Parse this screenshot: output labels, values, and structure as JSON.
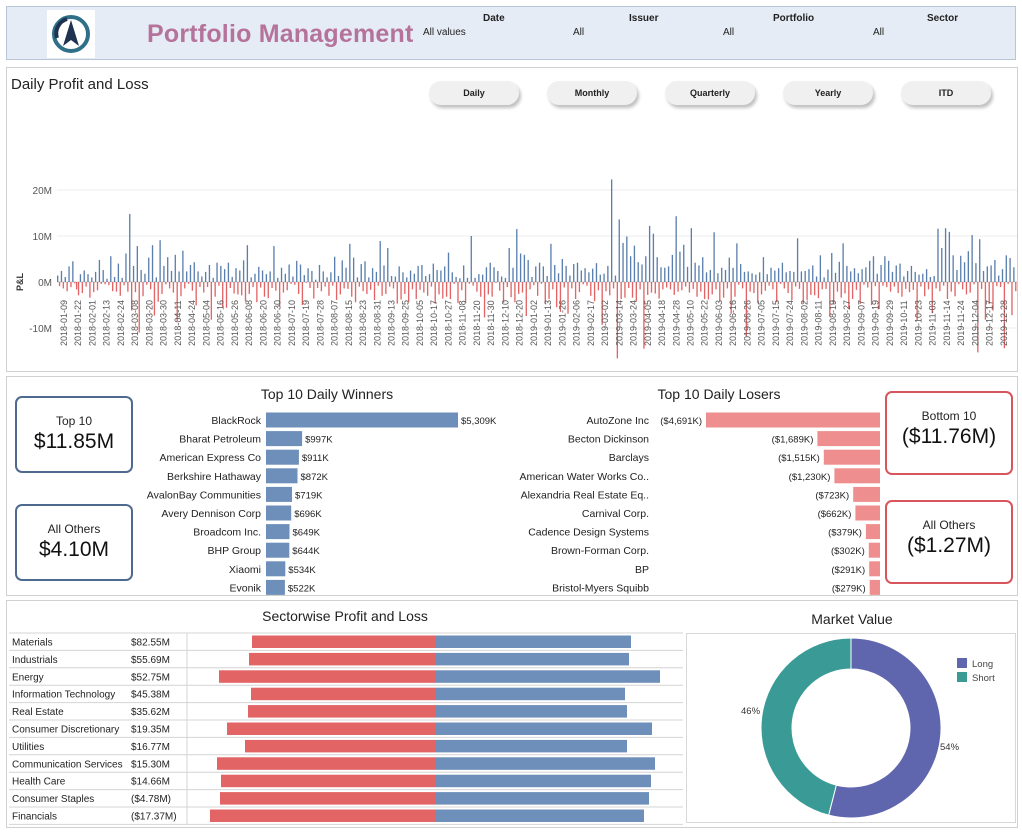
{
  "header": {
    "title": "Portfolio Management",
    "filters": [
      {
        "label": "Date",
        "value": "All values"
      },
      {
        "label": "Issuer",
        "value": "All"
      },
      {
        "label": "Portfolio",
        "value": "All"
      },
      {
        "label": "Sector",
        "value": "All"
      }
    ]
  },
  "daily": {
    "title": "Daily Profit and Loss",
    "buttons": [
      "Daily",
      "Monthly",
      "Quarterly",
      "Yearly",
      "ITD"
    ]
  },
  "winners_panel": {
    "title": "Top 10 Daily Winners",
    "kpi_top_label": "Top 10",
    "kpi_top_value": "$11.85M",
    "kpi_others_label": "All Others",
    "kpi_others_value": "$4.10M"
  },
  "losers_panel": {
    "title": "Top 10 Daily Losers",
    "kpi_bottom_label": "Bottom 10",
    "kpi_bottom_value": "($11.76M)",
    "kpi_others_label": "All Others",
    "kpi_others_value": "($1.27M)"
  },
  "sector_panel": {
    "title": "Sectorwise Profit and Loss"
  },
  "market_value": {
    "title": "Market Value"
  },
  "colors": {
    "positive": "#5b7fad",
    "negative": "#e26464",
    "winner_bar": "#6d8fba",
    "loser_bar": "#ef8e8e",
    "long": "#5f66ad",
    "short": "#3a9a96",
    "title_pink": "#b5739c"
  },
  "chart_data": [
    {
      "id": "daily_pnl",
      "type": "bar",
      "ylabel": "P&L",
      "yticks": [
        "20M",
        "10M",
        "0M",
        "-10M"
      ],
      "ylim": [
        -18,
        24
      ],
      "x_tick_labels": [
        "2018-01-09",
        "2018-01-22",
        "2018-02-01",
        "2018-02-13",
        "2018-02-24",
        "2018-03-08",
        "2018-03-20",
        "2018-03-30",
        "2018-04-11",
        "2018-04-24",
        "2018-05-04",
        "2018-05-16",
        "2018-05-26",
        "2018-06-08",
        "2018-06-20",
        "2018-06-30",
        "2018-07-10",
        "2018-07-19",
        "2018-07-28",
        "2018-08-07",
        "2018-08-15",
        "2018-08-23",
        "2018-08-31",
        "2018-09-13",
        "2018-09-25",
        "2018-10-05",
        "2018-10-17",
        "2018-10-27",
        "2018-11-08",
        "2018-11-20",
        "2018-11-30",
        "2018-12-10",
        "2018-12-20",
        "2019-01-02",
        "2019-01-13",
        "2019-01-26",
        "2019-02-06",
        "2019-02-17",
        "2019-03-02",
        "2019-03-14",
        "2019-03-24",
        "2019-04-05",
        "2019-04-18",
        "2019-04-28",
        "2019-05-10",
        "2019-05-22",
        "2019-06-03",
        "2019-06-16",
        "2019-06-26",
        "2019-07-05",
        "2019-07-15",
        "2019-07-24",
        "2019-08-02",
        "2019-08-11",
        "2019-08-19",
        "2019-08-27",
        "2019-09-07",
        "2019-09-19",
        "2019-09-29",
        "2019-10-11",
        "2019-10-23",
        "2019-11-03",
        "2019-11-14",
        "2019-11-24",
        "2019-12-04",
        "2019-12-17",
        "2019-12-28"
      ],
      "values": [
        1.4,
        -0.9,
        2.4,
        -1.4,
        1.1,
        -2.0,
        3.4,
        -1.1,
        4.5,
        -0.3,
        -1.6,
        -2.9,
        1.7,
        -2.4,
        2.5,
        -1.0,
        1.7,
        -3.4,
        1.0,
        -2.2,
        2.2,
        -1.8,
        4.8,
        -0.4,
        2.6,
        -0.5,
        0.7,
        -0.7,
        5.6,
        -2.0,
        1.1,
        -2.1,
        4.0,
        -3.0,
        0.9,
        -0.7,
        6.2,
        -2.1,
        14.8,
        -6.2,
        3.5,
        -2.2,
        7.8,
        -11.0,
        2.6,
        -3.1,
        1.8,
        -0.6,
        5.3,
        -1.6,
        8.0,
        -7.3,
        1.0,
        -4.3,
        9.1,
        -2.6,
        3.5,
        -0.5,
        5.4,
        -1.4,
        2.4,
        -2.3,
        5.9,
        -8.5,
        2.3,
        -3.1,
        6.8,
        -1.4,
        2.3,
        -0.4,
        3.7,
        -1.9,
        4.3,
        -5.1,
        2.3,
        -1.1,
        1.2,
        -2.3,
        2.2,
        -1.1,
        3.7,
        -8.2,
        0.9,
        -3.2,
        4.2,
        -0.8,
        3.5,
        -5.5,
        2.8,
        -5.6,
        4.2,
        -1.3,
        1.1,
        -2.5,
        3.0,
        -2.7,
        2.5,
        -2.9,
        4.7,
        -4.2,
        8.0,
        -2.6,
        1.0,
        -1.1,
        1.8,
        -4.4,
        3.3,
        -1.2,
        2.5,
        -3.2,
        1.7,
        -3.5,
        2.3,
        -1.3,
        7.8,
        -1.9,
        0.9,
        -5.3,
        3.1,
        -2.3,
        1.8,
        -1.8,
        3.8,
        -0.4,
        1.2,
        -0.6,
        4.6,
        -2.6,
        3.8,
        -5.0,
        1.5,
        -0.2,
        3.0,
        -1.3,
        2.4,
        -3.6,
        0.5,
        -1.3,
        3.7,
        -2.0,
        2.3,
        -1.0,
        1.0,
        -3.0,
        2.1,
        -0.8,
        5.5,
        -3.9,
        1.3,
        -2.7,
        4.7,
        -1.4,
        3.1,
        -1.5,
        8.3,
        -3.2,
        5.3,
        -4.4,
        1.0,
        -1.0,
        3.9,
        -2.0,
        4.5,
        -2.6,
        1.0,
        -1.7,
        3.0,
        -3.9,
        2.2,
        -0.8,
        8.9,
        -3.0,
        3.6,
        -2.6,
        7.4,
        -1.0,
        1.3,
        -1.4,
        1.2,
        -4.7,
        3.4,
        -3.8,
        2.1,
        -2.6,
        1.0,
        -4.4,
        2.5,
        -1.6,
        1.8,
        -3.7,
        3.5,
        -1.7,
        3.7,
        -2.3,
        1.3,
        -3.0,
        1.7,
        -1.0,
        4.0,
        -4.7,
        2.6,
        -2.7,
        2.5,
        -3.6,
        3.4,
        -3.2,
        6.4,
        -3.7,
        2.1,
        -0.4,
        1.1,
        -4.6,
        0.8,
        -1.8,
        3.6,
        -4.6,
        0.9,
        -0.4,
        10.0,
        -0.8,
        0.9,
        -2.1,
        1.7,
        -3.2,
        1.6,
        -7.7,
        3.2,
        -2.7,
        4.2,
        -3.2,
        3.2,
        -0.2,
        2.4,
        -1.9,
        1.2,
        -4.5,
        0.9,
        -1.1,
        7.4,
        -3.3,
        3.1,
        -4.4,
        11.5,
        -2.6,
        6.2,
        -2.3,
        5.9,
        -7.4,
        4.8,
        -1.6,
        1.1,
        -0.7,
        3.4,
        -3.0,
        4.2,
        -0.4,
        3.4,
        -4.7,
        1.3,
        -3.7,
        8.3,
        -1.6,
        3.7,
        -5.5,
        1.9,
        -6.5,
        5.0,
        -1.2,
        3.5,
        -6.9,
        1.4,
        -1.4,
        3.9,
        -3.7,
        4.2,
        -2.2,
        2.5,
        -0.5,
        3.0,
        -0.8,
        2.1,
        -3.0,
        2.9,
        -4.2,
        4.1,
        -1.8,
        1.6,
        -9.3,
        1.8,
        -2.0,
        3.5,
        -2.9,
        22.3,
        -1.4,
        1.4,
        -16.6,
        13.6,
        -3.7,
        8.5,
        -3.4,
        9.9,
        -1.3,
        5.6,
        -3.4,
        7.9,
        -4.2,
        4.3,
        -1.6,
        3.8,
        -14.5,
        5.6,
        -2.8,
        12.2,
        -2.3,
        10.5,
        -2.5,
        5.4,
        -3.6,
        3.2,
        -1.6,
        3.1,
        -1.2,
        3.4,
        -1.6,
        5.9,
        -2.8,
        14.3,
        -2.1,
        6.6,
        -1.8,
        8.1,
        -1.0,
        3.3,
        -2.3,
        11.7,
        -1.5,
        4.2,
        -3.2,
        3.6,
        -2.1,
        5.4,
        -3.7,
        2.1,
        -3.8,
        2.6,
        -2.7,
        10.8,
        -1.6,
        1.9,
        -4.2,
        3.1,
        -3.4,
        2.6,
        -1.4,
        5.3,
        -6.9,
        3.1,
        -3.2,
        8.4,
        -0.6,
        3.9,
        -1.4,
        2.2,
        -11.8,
        2.3,
        -2.1,
        1.9,
        -2.4,
        1.6,
        -4.6,
        2.1,
        -2.7,
        5.4,
        -1.9,
        1.7,
        -0.8,
        3.1,
        -1.6,
        2.5,
        -4.4,
        3.0,
        -0.4,
        4.2,
        -1.4,
        2.1,
        -2.4,
        2.4,
        -3.9,
        2.2,
        -1.0,
        9.5,
        -1.5,
        2.3,
        -4.8,
        2.4,
        -3.9,
        2.8,
        -2.8,
        3.6,
        -2.9,
        1.2,
        -3.5,
        5.8,
        -1.6,
        1.0,
        -1.5,
        2.7,
        -7.5,
        6.3,
        -4.9,
        2.0,
        -2.1,
        4.4,
        -3.4,
        8.4,
        -2.5,
        3.5,
        -5.7,
        2.3,
        -3.7,
        3.0,
        -1.7,
        1.9,
        -4.8,
        2.8,
        -0.6,
        3.2,
        -1.2,
        4.6,
        -5.0,
        5.6,
        -0.9,
        1.8,
        -5.9,
        3.7,
        -0.8,
        5.6,
        -1.1,
        4.6,
        -2.1,
        2.2,
        -1.0,
        3.6,
        -2.4,
        4.0,
        -3.2,
        1.2,
        -1.5,
        2.4,
        -2.2,
        3.5,
        -1.7,
        2.2,
        -8.3,
        1.6,
        -1.0,
        1.8,
        -3.1,
        2.8,
        -1.6,
        1.1,
        -6.8,
        1.3,
        -1.4,
        11.6,
        -2.0,
        7.4,
        -0.8,
        11.7,
        -3.7,
        10.9,
        -2.1,
        5.8,
        -3.1,
        2.6,
        -0.5,
        5.7,
        -1.6,
        4.3,
        -2.7,
        6.7,
        -2.3,
        10.2,
        -0.5,
        4.1,
        -15.3,
        9.3,
        -1.5,
        2.4,
        -8.2,
        3.4,
        -4.8,
        3.6,
        -6.2,
        4.8,
        -0.9,
        1.4,
        -1.1,
        2.8,
        -14.4,
        5.8,
        -0.4,
        5.2,
        -7.2,
        3.2,
        -2.0
      ]
    },
    {
      "id": "top10_winners",
      "type": "bar",
      "title": "Top 10 Daily Winners",
      "categories": [
        "BlackRock",
        "Bharat Petroleum",
        "American Express Co",
        "Berkshire Hathaway",
        "AvalonBay Communities",
        "Avery Dennison Corp",
        "Broadcom Inc.",
        "BHP Group",
        "Xiaomi",
        "Evonik"
      ],
      "values": [
        5309,
        997,
        911,
        872,
        719,
        696,
        649,
        644,
        534,
        522
      ],
      "labels": [
        "$5,309K",
        "$997K",
        "$911K",
        "$872K",
        "$719K",
        "$696K",
        "$649K",
        "$644K",
        "$534K",
        "$522K"
      ]
    },
    {
      "id": "top10_losers",
      "type": "bar",
      "title": "Top 10 Daily Losers",
      "categories": [
        "AutoZone Inc",
        "Becton Dickinson",
        "Barclays",
        "American Water Works Co..",
        "Alexandria Real Estate Eq..",
        "Carnival Corp.",
        "Cadence Design Systems",
        "Brown-Forman Corp.",
        "BP",
        "Bristol-Myers Squibb"
      ],
      "values": [
        -4691,
        -1689,
        -1515,
        -1230,
        -723,
        -662,
        -379,
        -302,
        -291,
        -279
      ],
      "labels": [
        "($4,691K)",
        "($1,689K)",
        "($1,515K)",
        "($1,230K)",
        "($723K)",
        "($662K)",
        "($379K)",
        "($302K)",
        "($291K)",
        "($279K)"
      ]
    },
    {
      "id": "sector_pnl",
      "type": "bar",
      "title": "Sectorwise Profit and Loss",
      "categories": [
        "Materials",
        "Industrials",
        "Energy",
        "Information Technology",
        "Real Estate",
        "Consumer Discretionary",
        "Utilities",
        "Communication Services",
        "Health Care",
        "Consumer Staples",
        "Financials"
      ],
      "net_labels": [
        "$82.55M",
        "$55.69M",
        "$52.75M",
        "$45.38M",
        "$35.62M",
        "$19.35M",
        "$16.77M",
        "$15.30M",
        "$14.66M",
        "($4.78M)",
        "($17.37M)"
      ],
      "series": [
        {
          "name": "Profit",
          "values": [
            196,
            194,
            225,
            190,
            192,
            217,
            192,
            220,
            216,
            214,
            209
          ]
        },
        {
          "name": "Loss",
          "values": [
            -183,
            -186,
            -216,
            -184,
            -187,
            -208,
            -190,
            -218,
            -214,
            -215,
            -225
          ]
        }
      ]
    },
    {
      "id": "market_value",
      "type": "pie",
      "title": "Market Value",
      "categories": [
        "Long",
        "Short"
      ],
      "values": [
        54,
        46
      ],
      "labels": [
        "54%",
        "46%"
      ],
      "legend": "top-right"
    }
  ]
}
